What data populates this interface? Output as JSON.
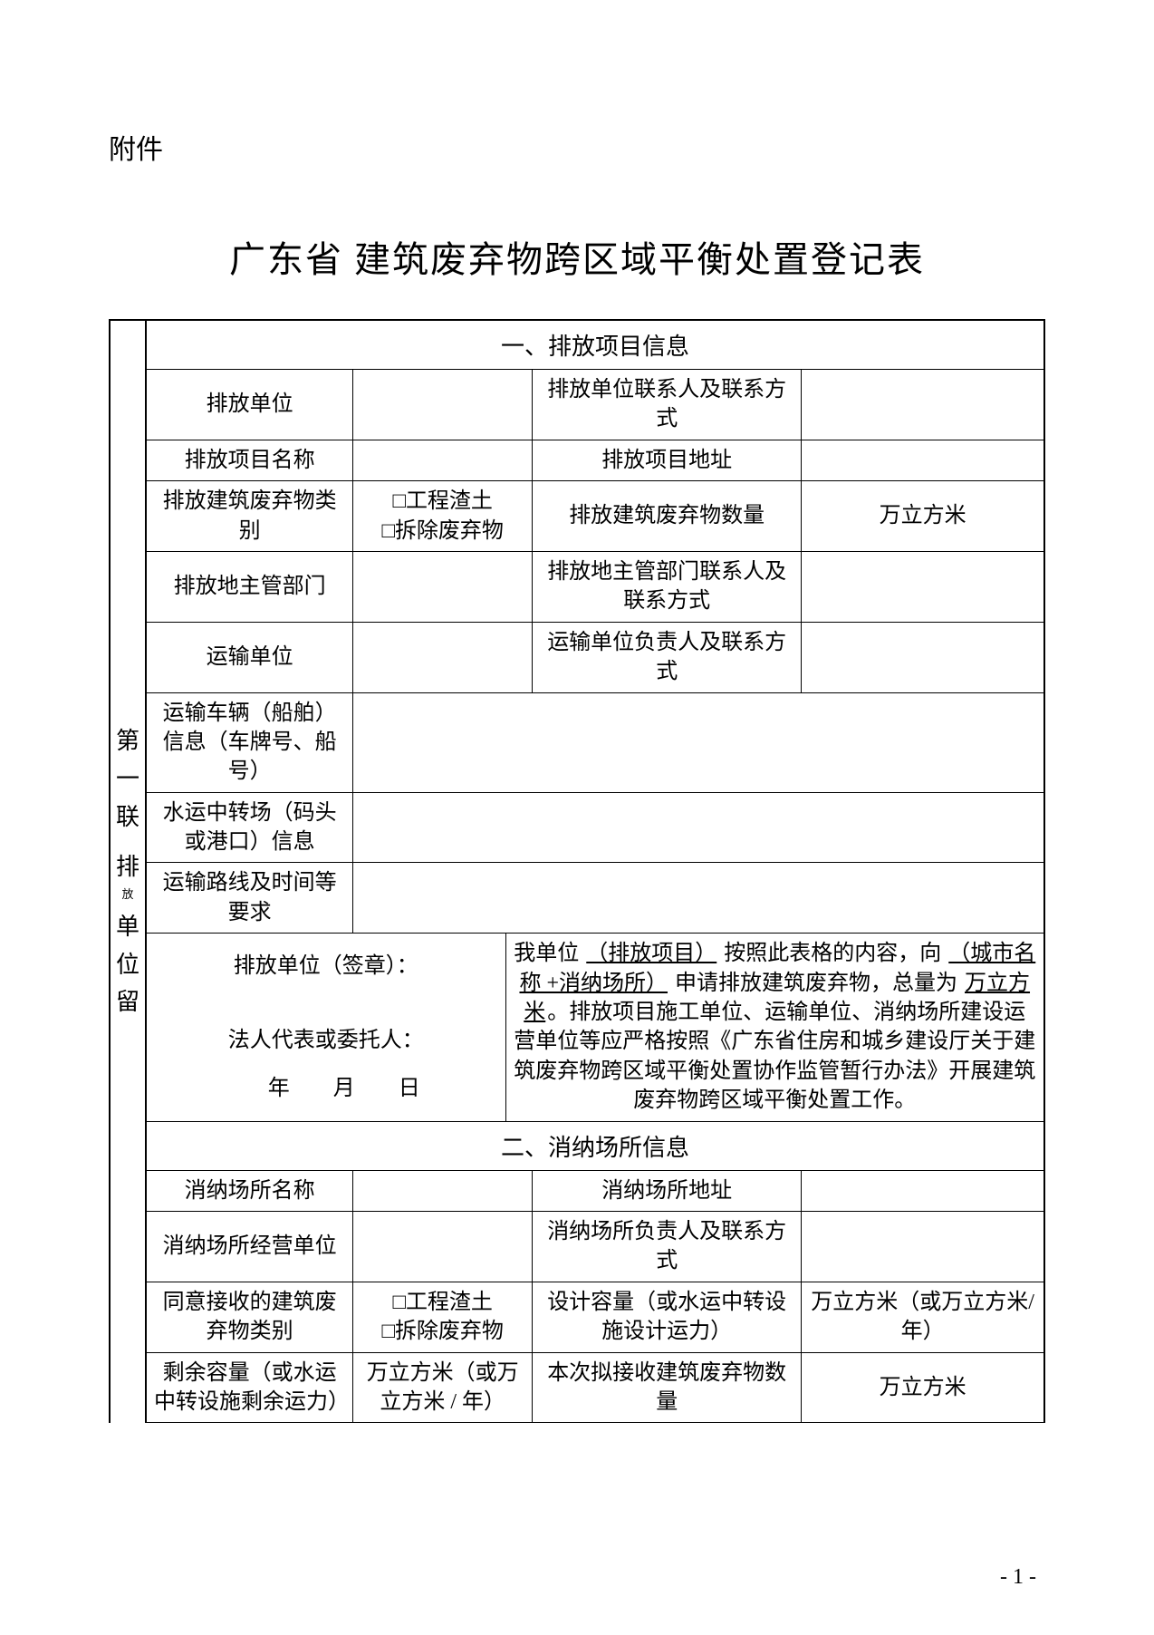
{
  "attachment": "附件",
  "title": "广东省  建筑废弃物跨区域平衡处置登记表",
  "side_label_lines": [
    "第",
    "一",
    "联",
    "",
    "排",
    "放",
    "",
    "单",
    "位",
    "留"
  ],
  "side_label_small_after_index": 3,
  "section1": {
    "header": "一、排放项目信息",
    "rows": [
      {
        "l1": "排放单位",
        "v1": "",
        "l2": "排放单位联系人及联系方式",
        "v2": ""
      },
      {
        "l1": "排放项目名称",
        "v1": "",
        "l2": "排放项目地址",
        "v2": ""
      },
      {
        "l1": "排放建筑废弃物类别",
        "v1_checkboxes": [
          "工程渣土",
          "拆除废弃物"
        ],
        "l2": "排放建筑废弃物数量",
        "v2": "万立方米"
      },
      {
        "l1": "排放地主管部门",
        "v1": "",
        "l2": "排放地主管部门联系人及联系方式",
        "v2": ""
      },
      {
        "l1": "运输单位",
        "v1": "",
        "l2": "运输单位负责人及联系方式",
        "v2": ""
      },
      {
        "l1": "运输车辆（船舶）信息（车牌号、船号）",
        "full": ""
      },
      {
        "l1": "水运中转场（码头或港口）信息",
        "full": ""
      },
      {
        "l1": "运输路线及时间等要求",
        "full": ""
      }
    ],
    "signature": {
      "left_top": "排放单位（签章）：",
      "left_mid": "法人代表或委托人：",
      "left_date": "年　　月　　日",
      "right_text_parts": [
        "我单位 ",
        "（排放项目）",
        " 按照此表格的内容，向 ",
        "（城市名称 +消纳场所）",
        " 申请排放建筑废弃物，总量为 ",
        "万立方米",
        "。排放项目施工单位、运输单位、消纳场所建设运营单位等应严格按照《广东省住房和城乡建设厅关于建筑废弃物跨区域平衡处置协作监管暂行办法》开展建筑废弃物跨区域平衡处置工作。"
      ],
      "underline_indexes": [
        1,
        3,
        5
      ]
    }
  },
  "section2": {
    "header": "二、消纳场所信息",
    "rows": [
      {
        "l1": "消纳场所名称",
        "v1": "",
        "l2": "消纳场所地址",
        "v2": ""
      },
      {
        "l1": "消纳场所经营单位",
        "v1": "",
        "l2": "消纳场所负责人及联系方式",
        "v2": ""
      },
      {
        "l1": "同意接收的建筑废弃物类别",
        "v1_checkboxes": [
          "工程渣土",
          "拆除废弃物"
        ],
        "l2": "设计容量（或水运中转设施设计运力）",
        "v2": "万立方米（或万立方米/ 年）",
        "v2_align": "right"
      },
      {
        "l1": "剩余容量（或水运中转设施剩余运力）",
        "v1": "万立方米（或万立方米 / 年）",
        "v1_align": "right",
        "l2": "本次拟接收建筑废弃物数量",
        "v2": "万立方米",
        "v2_align": "right"
      }
    ]
  },
  "page_number": "- 1 -",
  "checkbox_char": "□"
}
